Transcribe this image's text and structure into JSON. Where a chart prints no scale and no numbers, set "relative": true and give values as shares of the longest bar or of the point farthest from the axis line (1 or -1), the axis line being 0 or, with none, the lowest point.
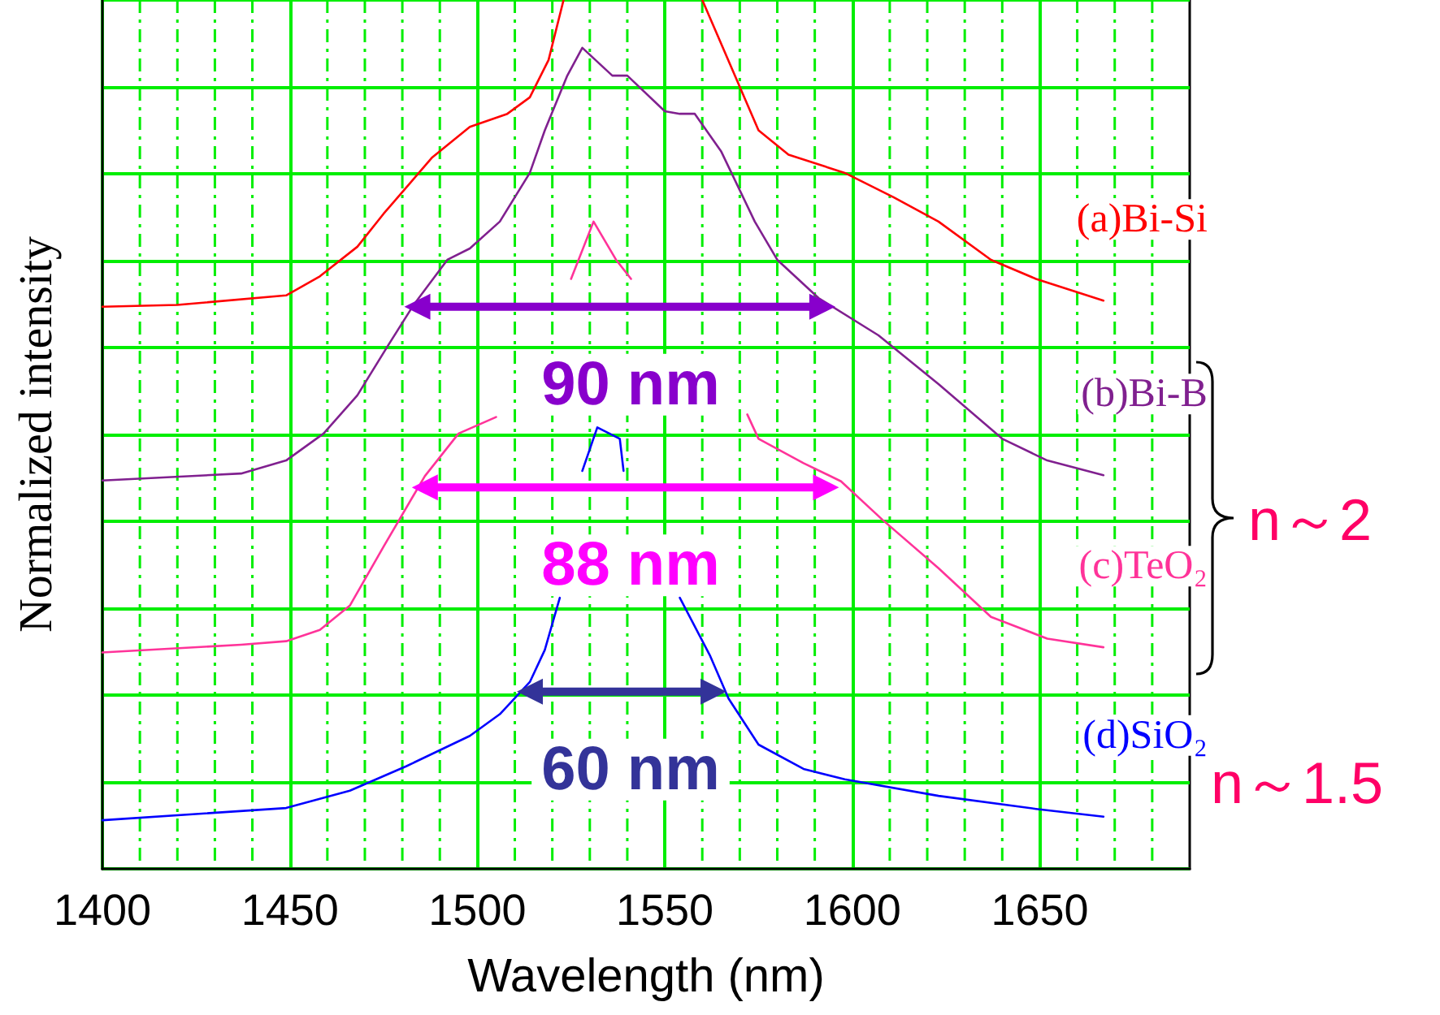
{
  "chart_data": {
    "type": "line",
    "relative": true,
    "xlabel": "Wavelength (nm)",
    "ylabel": "Normalized intensity",
    "xlim": [
      1400,
      1690
    ],
    "xticks": [
      1400,
      {
        "value": 1410,
        "label": null
      },
      {
        "value": 1420,
        "label": null
      },
      {
        "value": 1430,
        "label": null
      },
      {
        "value": 1440,
        "label": null
      },
      1450,
      {
        "value": 1460,
        "label": null
      },
      {
        "value": 1470,
        "label": null
      },
      {
        "value": 1480,
        "label": null
      },
      {
        "value": 1490,
        "label": null
      },
      1500,
      {
        "value": 1510,
        "label": null
      },
      {
        "value": 1520,
        "label": null
      },
      {
        "value": 1530,
        "label": null
      },
      {
        "value": 1540,
        "label": null
      },
      1550,
      {
        "value": 1560,
        "label": null
      },
      {
        "value": 1570,
        "label": null
      },
      {
        "value": 1580,
        "label": null
      },
      {
        "value": 1590,
        "label": null
      },
      1600,
      {
        "value": 1610,
        "label": null
      },
      {
        "value": 1620,
        "label": null
      },
      {
        "value": 1630,
        "label": null
      },
      {
        "value": 1640,
        "label": null
      },
      1650,
      {
        "value": 1660,
        "label": null
      },
      {
        "value": 1670,
        "label": null
      },
      {
        "value": 1680,
        "label": null
      }
    ],
    "grid": true,
    "tick_labels": "x",
    "marker": "none",
    "series": [
      {
        "name": "(a)Bi-Si",
        "color": "#ff0000",
        "x": [
          1400,
          1420,
          1449,
          1458,
          1468,
          1475,
          1488,
          1498,
          1508,
          1514,
          1519,
          1523,
          1540,
          1560,
          1575,
          1583,
          1598,
          1611,
          1623,
          1637,
          1649,
          1667
        ],
        "values": [
          0.647,
          0.649,
          0.66,
          0.682,
          0.716,
          0.754,
          0.819,
          0.854,
          0.869,
          0.888,
          0.931,
          1.0,
          null,
          1.0,
          0.85,
          0.822,
          0.801,
          0.773,
          0.745,
          0.701,
          0.679,
          0.654
        ]
      },
      {
        "name": "(b)Bi-B",
        "color": "#80208f",
        "x": [
          1400,
          1437,
          1449,
          1459,
          1468,
          1476,
          1483,
          1492,
          1498,
          1506,
          1514,
          1518,
          1524,
          1528,
          1536,
          1540,
          1550,
          1554,
          1558,
          1565,
          1574,
          1580,
          1591,
          1607,
          1623,
          1640,
          1652,
          1667
        ],
        "values": [
          0.447,
          0.455,
          0.47,
          0.501,
          0.545,
          0.601,
          0.649,
          0.701,
          0.714,
          0.745,
          0.801,
          0.85,
          0.913,
          0.945,
          0.913,
          0.913,
          0.872,
          0.869,
          0.869,
          0.826,
          0.745,
          0.701,
          0.657,
          0.614,
          0.558,
          0.495,
          0.47,
          0.453
        ]
      },
      {
        "name": "(c)TeO₂",
        "color": "#ff3399",
        "x": [
          1400,
          1437,
          1449,
          1458,
          1466,
          1475,
          1486,
          1495,
          1505,
          1515,
          1525,
          1531,
          1537,
          1541,
          1556,
          1572,
          1575,
          1587,
          1597,
          1608,
          1623,
          1637,
          1652,
          1667
        ],
        "values": [
          0.249,
          0.258,
          0.262,
          0.275,
          0.303,
          0.371,
          0.452,
          0.501,
          0.52,
          null,
          0.679,
          0.745,
          0.701,
          0.679,
          null,
          0.523,
          0.495,
          0.467,
          0.446,
          0.402,
          0.346,
          0.29,
          0.265,
          0.255
        ]
      },
      {
        "name": "(d)SiO₂",
        "color": "#0000ff",
        "x": [
          1400,
          1449,
          1466,
          1481,
          1498,
          1506,
          1514,
          1518,
          1522,
          1525,
          1528,
          1532,
          1538,
          1539,
          1546,
          1554,
          1562,
          1567,
          1575,
          1587,
          1598,
          1623,
          1649,
          1667
        ],
        "values": [
          0.056,
          0.07,
          0.09,
          0.118,
          0.153,
          0.178,
          0.215,
          0.252,
          0.312,
          null,
          0.458,
          0.508,
          0.495,
          0.458,
          null,
          0.312,
          0.246,
          0.196,
          0.143,
          0.115,
          0.103,
          0.084,
          0.069,
          0.06
        ]
      },
      {
        "color": "#8800cc",
        "marker": "triangle",
        "x": [
          1484,
          1592
        ],
        "values": [
          0.647,
          0.647
        ]
      },
      {
        "color": "#ff00ff",
        "marker": "triangle",
        "x": [
          1486,
          1593
        ],
        "values": [
          0.439,
          0.439
        ]
      },
      {
        "color": "#333399",
        "marker": "triangle",
        "x": [
          1514,
          1563
        ],
        "values": [
          0.204,
          0.204
        ]
      }
    ],
    "annotations": [
      "90 nm",
      "88 nm",
      "60 nm",
      "n～2",
      "n～1.5"
    ]
  }
}
